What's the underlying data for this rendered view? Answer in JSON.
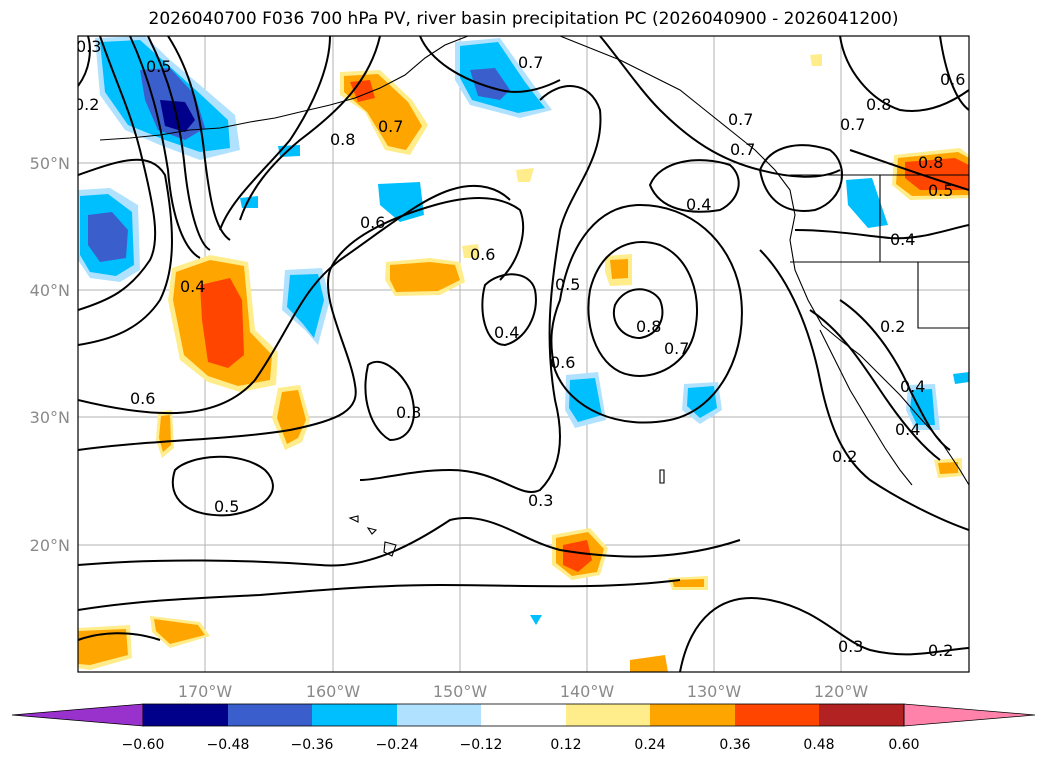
{
  "title": "2026040700 F036 700 hPa PV, river basin precipitation PC (2026040900 - 2026041200)",
  "lat_labels": [
    "50°N",
    "40°N",
    "30°N",
    "20°N"
  ],
  "lon_labels": [
    "170°W",
    "160°W",
    "150°W",
    "140°W",
    "130°W",
    "120°W"
  ],
  "colorbar": {
    "colors": [
      "#9932cc",
      "#00008b",
      "#3a5fcd",
      "#00bfff",
      "#b0e2ff",
      "#ffffff",
      "#ffec8b",
      "#ffa500",
      "#ff4500",
      "#b22222",
      "#ff82ab"
    ],
    "tick_labels": [
      "−0.60",
      "−0.48",
      "−0.36",
      "−0.24",
      "−0.12",
      "0.12",
      "0.24",
      "0.36",
      "0.48",
      "0.60"
    ]
  },
  "contour_labels": [
    "0.3",
    "0.2",
    "0.5",
    "0.7",
    "0.8",
    "0.7",
    "0.7",
    "0.8",
    "0.7",
    "0.7",
    "0.6",
    "0.8",
    "0.5",
    "0.6",
    "0.4",
    "0.6",
    "0.4",
    "0.4",
    "0.5",
    "0.8",
    "0.7",
    "0.4",
    "0.6",
    "0.6",
    "0.3",
    "0.2",
    "0.4",
    "0.4",
    "0.2",
    "0.5",
    "0.3",
    "0.3",
    "0.2"
  ]
}
